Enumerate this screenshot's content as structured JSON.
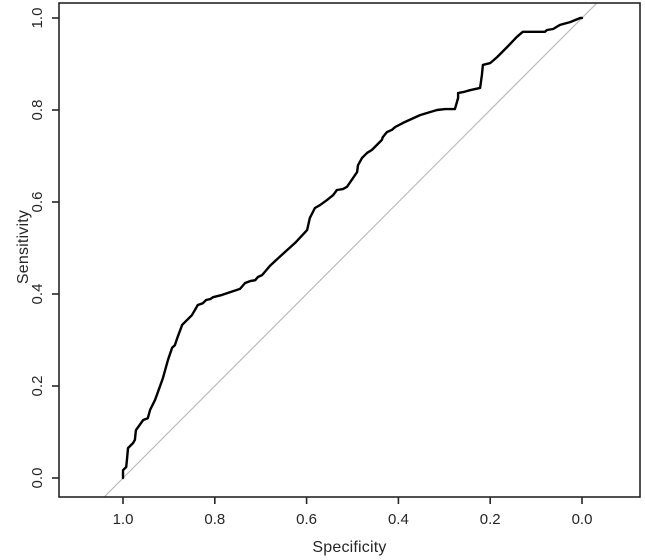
{
  "figure": {
    "background_color": "#ffffff",
    "axis_color": "#262626",
    "text_color": "#262626"
  },
  "chart_data": {
    "type": "line",
    "title": "",
    "xlabel": "Specificity",
    "ylabel": "Sensitivity",
    "x_axis_reversed": true,
    "xlim": [
      1.0,
      0.0
    ],
    "ylim": [
      0.0,
      1.0
    ],
    "grid": false,
    "legend": null,
    "x_ticks": [
      {
        "value": 1.0,
        "label": "1.0"
      },
      {
        "value": 0.8,
        "label": "0.8"
      },
      {
        "value": 0.6,
        "label": "0.6"
      },
      {
        "value": 0.4,
        "label": "0.4"
      },
      {
        "value": 0.2,
        "label": "0.2"
      },
      {
        "value": 0.0,
        "label": "0.0"
      }
    ],
    "y_ticks": [
      {
        "value": 0.0,
        "label": "0.0"
      },
      {
        "value": 0.2,
        "label": "0.2"
      },
      {
        "value": 0.4,
        "label": "0.4"
      },
      {
        "value": 0.6,
        "label": "0.6"
      },
      {
        "value": 0.8,
        "label": "0.8"
      },
      {
        "value": 1.0,
        "label": "1.0"
      }
    ],
    "series": [
      {
        "name": "roc-curve",
        "color": "#000000",
        "width": 2.4,
        "points_xy_spec_sens": [
          [
            1.0,
            0.0
          ],
          [
            1.0,
            0.017
          ],
          [
            0.993,
            0.024
          ],
          [
            0.991,
            0.043
          ],
          [
            0.989,
            0.065
          ],
          [
            0.978,
            0.076
          ],
          [
            0.974,
            0.083
          ],
          [
            0.972,
            0.104
          ],
          [
            0.956,
            0.126
          ],
          [
            0.946,
            0.13
          ],
          [
            0.941,
            0.148
          ],
          [
            0.93,
            0.17
          ],
          [
            0.913,
            0.217
          ],
          [
            0.902,
            0.257
          ],
          [
            0.893,
            0.283
          ],
          [
            0.887,
            0.289
          ],
          [
            0.882,
            0.304
          ],
          [
            0.871,
            0.333
          ],
          [
            0.85,
            0.354
          ],
          [
            0.837,
            0.376
          ],
          [
            0.826,
            0.38
          ],
          [
            0.819,
            0.387
          ],
          [
            0.81,
            0.389
          ],
          [
            0.804,
            0.393
          ],
          [
            0.784,
            0.398
          ],
          [
            0.767,
            0.404
          ],
          [
            0.745,
            0.411
          ],
          [
            0.734,
            0.424
          ],
          [
            0.723,
            0.428
          ],
          [
            0.712,
            0.43
          ],
          [
            0.706,
            0.437
          ],
          [
            0.697,
            0.441
          ],
          [
            0.68,
            0.461
          ],
          [
            0.654,
            0.485
          ],
          [
            0.625,
            0.511
          ],
          [
            0.599,
            0.539
          ],
          [
            0.593,
            0.565
          ],
          [
            0.582,
            0.587
          ],
          [
            0.571,
            0.593
          ],
          [
            0.556,
            0.604
          ],
          [
            0.542,
            0.615
          ],
          [
            0.534,
            0.626
          ],
          [
            0.521,
            0.628
          ],
          [
            0.512,
            0.633
          ],
          [
            0.499,
            0.652
          ],
          [
            0.49,
            0.665
          ],
          [
            0.488,
            0.68
          ],
          [
            0.479,
            0.696
          ],
          [
            0.468,
            0.707
          ],
          [
            0.458,
            0.713
          ],
          [
            0.447,
            0.724
          ],
          [
            0.436,
            0.735
          ],
          [
            0.434,
            0.741
          ],
          [
            0.425,
            0.752
          ],
          [
            0.414,
            0.757
          ],
          [
            0.407,
            0.763
          ],
          [
            0.39,
            0.772
          ],
          [
            0.353,
            0.789
          ],
          [
            0.316,
            0.8
          ],
          [
            0.298,
            0.802
          ],
          [
            0.277,
            0.802
          ],
          [
            0.27,
            0.826
          ],
          [
            0.27,
            0.837
          ],
          [
            0.259,
            0.839
          ],
          [
            0.244,
            0.843
          ],
          [
            0.222,
            0.848
          ],
          [
            0.218,
            0.876
          ],
          [
            0.216,
            0.898
          ],
          [
            0.2,
            0.902
          ],
          [
            0.185,
            0.915
          ],
          [
            0.163,
            0.937
          ],
          [
            0.142,
            0.959
          ],
          [
            0.129,
            0.97
          ],
          [
            0.081,
            0.97
          ],
          [
            0.076,
            0.974
          ],
          [
            0.063,
            0.976
          ],
          [
            0.048,
            0.985
          ],
          [
            0.026,
            0.991
          ],
          [
            0.004,
            1.0
          ],
          [
            0.0,
            1.0
          ]
        ]
      },
      {
        "name": "chance-diagonal",
        "color": "#bcbcbc",
        "width": 1.2,
        "points_xy_spec_sens": [
          [
            1.041,
            -0.041
          ],
          [
            -0.033,
            1.033
          ]
        ]
      }
    ]
  }
}
